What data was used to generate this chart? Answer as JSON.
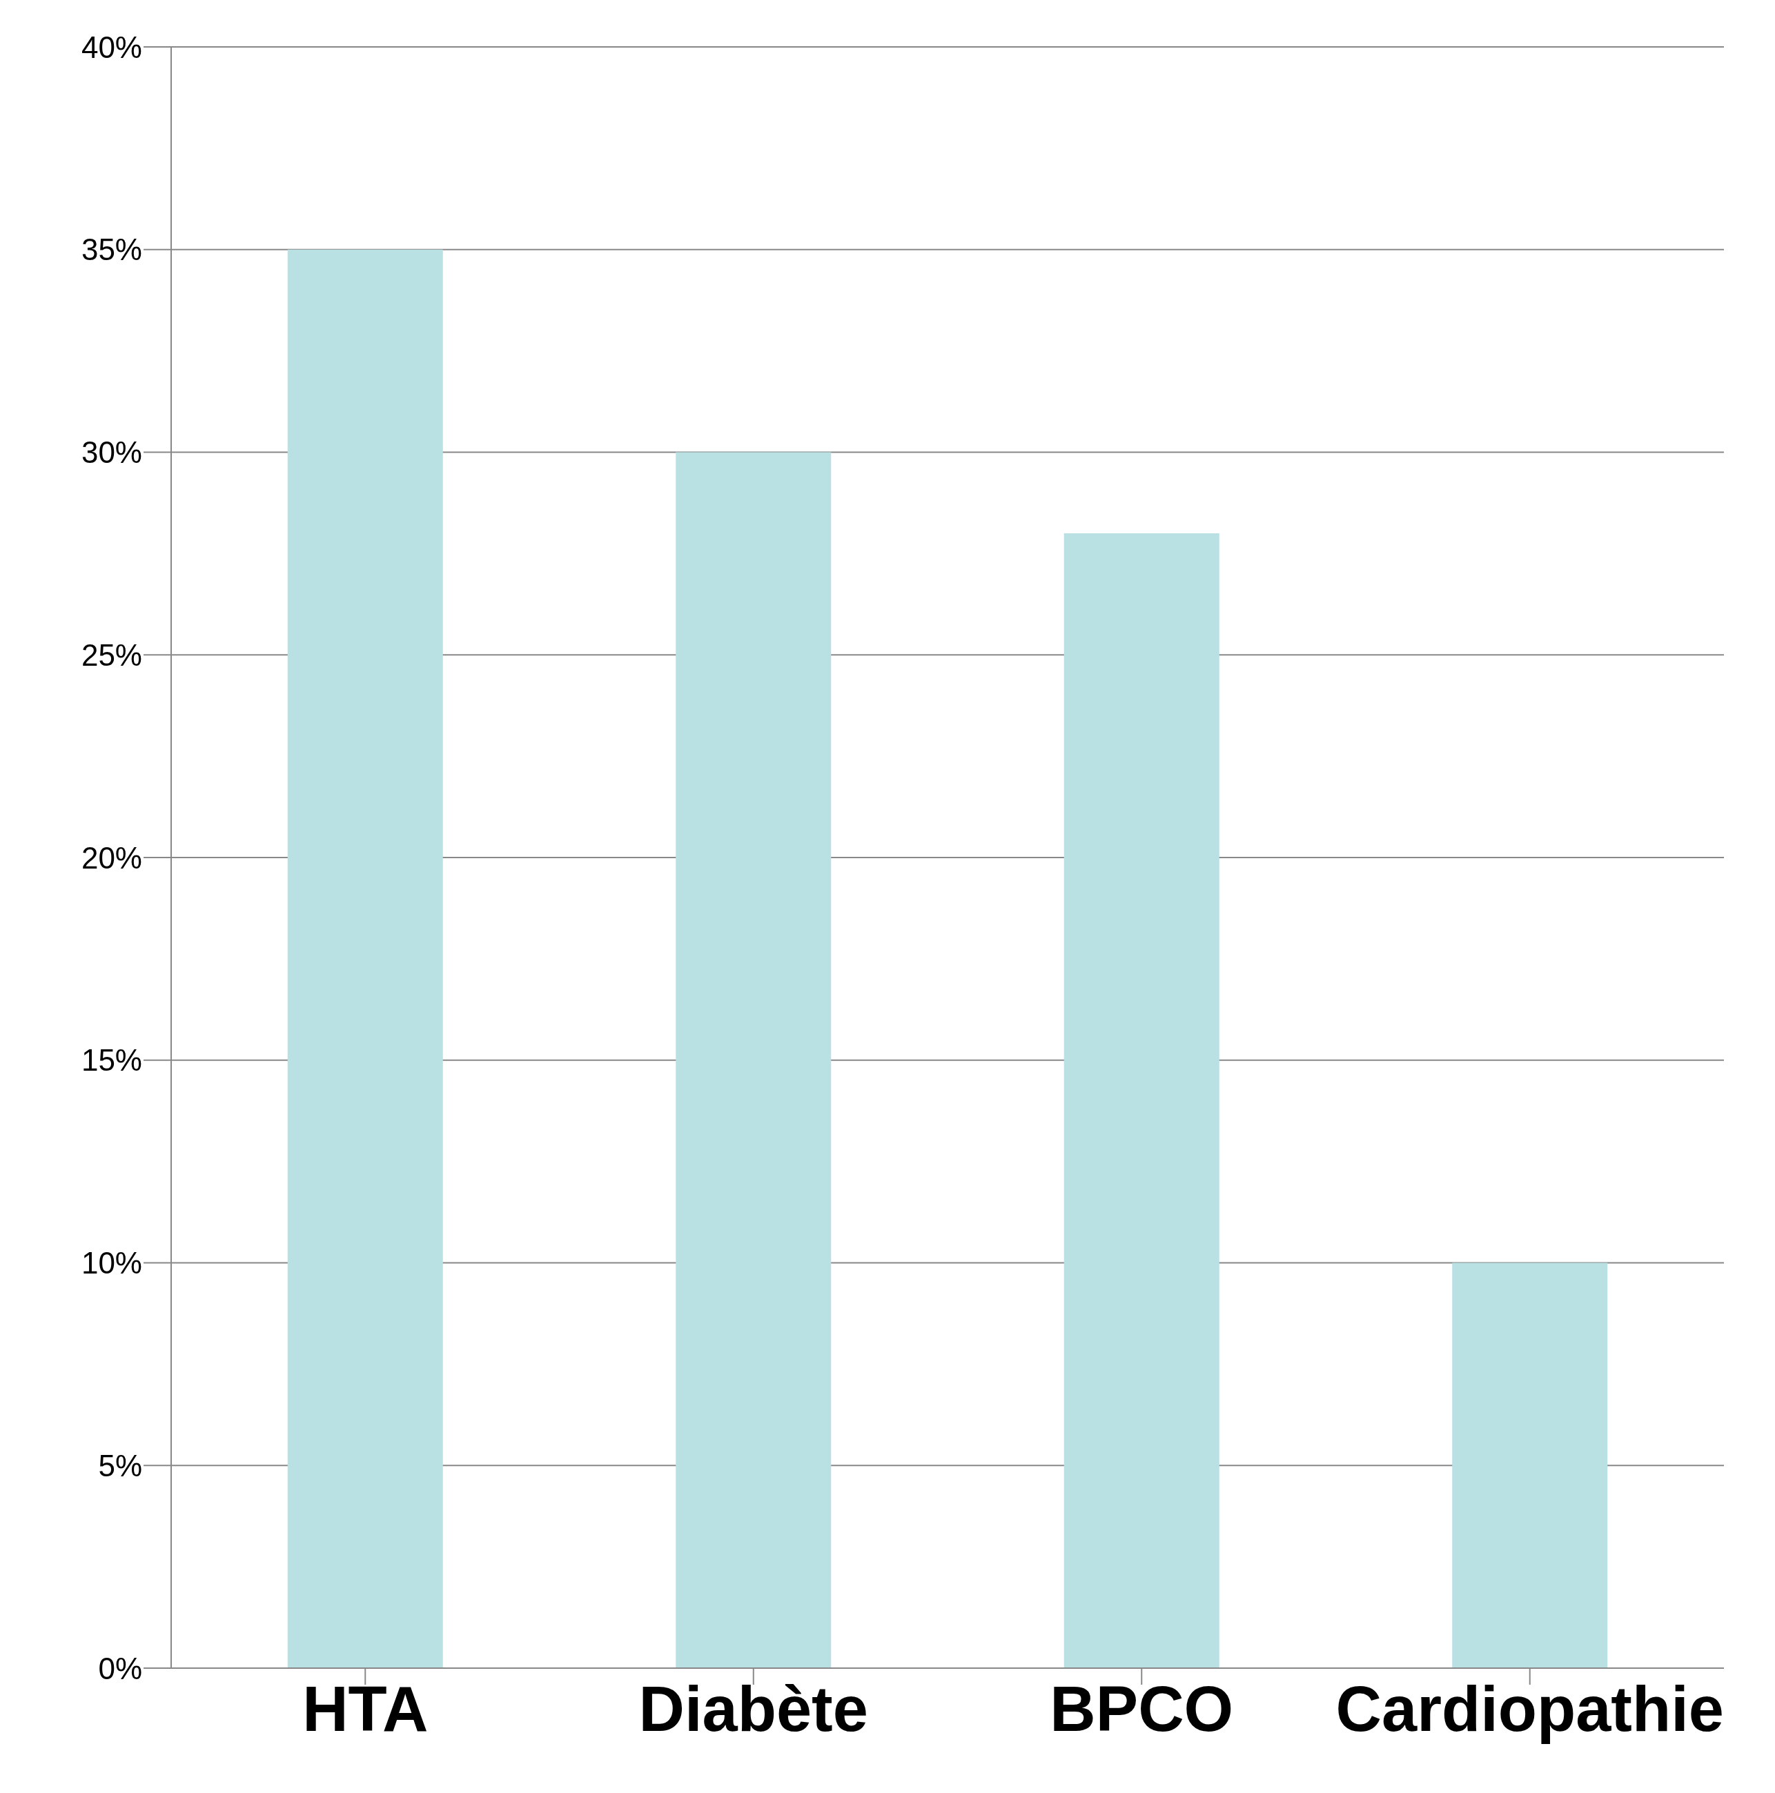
{
  "chart_data": {
    "type": "bar",
    "categories": [
      "HTA",
      "Diabète",
      "BPCO",
      "Cardiopathie"
    ],
    "values": [
      35,
      30,
      28,
      10
    ],
    "color": "#b9e0e2",
    "ylim": [
      0,
      40
    ],
    "yticks": [
      {
        "value": 0,
        "label": "0%"
      },
      {
        "value": 5,
        "label": "5%"
      },
      {
        "value": 10,
        "label": "10%"
      },
      {
        "value": 15,
        "label": "15%"
      },
      {
        "value": 20,
        "label": "20%"
      },
      {
        "value": 25,
        "label": "25%"
      },
      {
        "value": 30,
        "label": "30%"
      },
      {
        "value": 35,
        "label": "35%"
      },
      {
        "value": 40,
        "label": "40%"
      }
    ],
    "grid": "y",
    "legend": false
  }
}
